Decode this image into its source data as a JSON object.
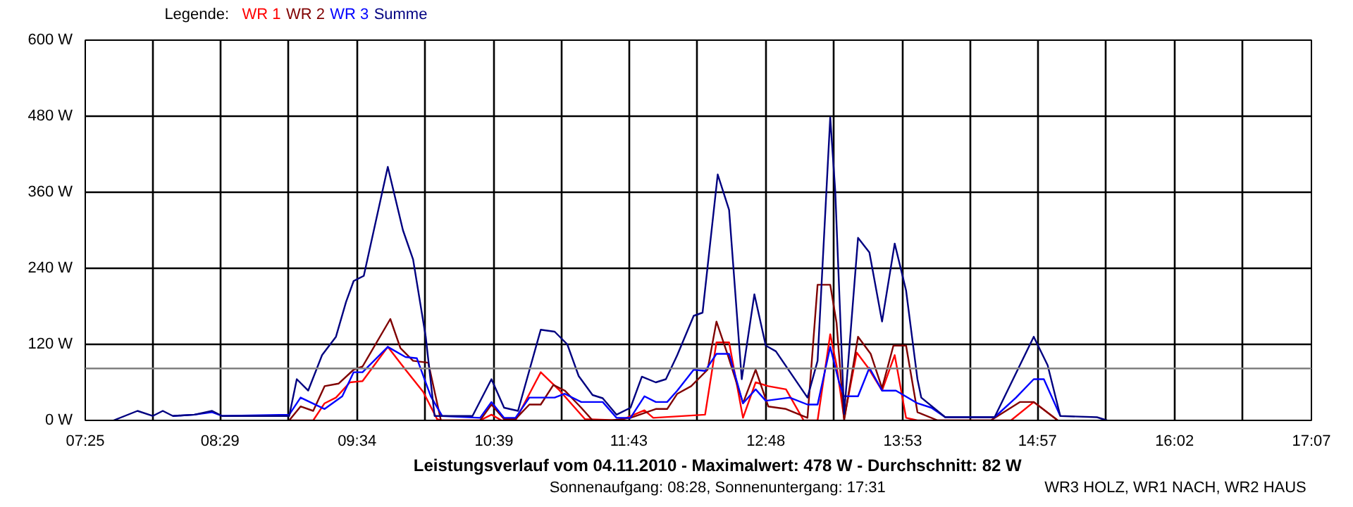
{
  "chart_data": {
    "type": "line",
    "title": "Leistungsverlauf vom 04.11.2010 - Maximalwert: 478 W - Durchschnitt: 82 W",
    "subtitle": "Sonnenaufgang: 08:28, Sonnenuntergang: 17:31",
    "annotations": [
      "WR3 HOLZ, WR1 NACH, WR2 HAUS"
    ],
    "legend_title": "Legende:",
    "legend": "top left",
    "grid": true,
    "xlim": [
      7.4167,
      17.1167
    ],
    "xticks": [
      {
        "value": 7.4167,
        "label": "07:25"
      },
      {
        "value": 7.95,
        "label": null
      },
      {
        "value": 8.4833,
        "label": "08:29"
      },
      {
        "value": 9.025,
        "label": null
      },
      {
        "value": 9.5667,
        "label": "09:34"
      },
      {
        "value": 10.1083,
        "label": null
      },
      {
        "value": 10.65,
        "label": "10:39"
      },
      {
        "value": 11.1833,
        "label": null
      },
      {
        "value": 11.7167,
        "label": "11:43"
      },
      {
        "value": 12.2583,
        "label": null
      },
      {
        "value": 12.8,
        "label": "12:48"
      },
      {
        "value": 13.3417,
        "label": null
      },
      {
        "value": 13.8833,
        "label": "13:53"
      },
      {
        "value": 14.4167,
        "label": null
      },
      {
        "value": 14.95,
        "label": "14:57"
      },
      {
        "value": 15.4917,
        "label": null
      },
      {
        "value": 16.0333,
        "label": "16:02"
      },
      {
        "value": 16.575,
        "label": null
      },
      {
        "value": 17.1167,
        "label": "17:07"
      }
    ],
    "ylim": [
      0,
      600
    ],
    "yticks": [
      {
        "value": 0,
        "label": "0 W"
      },
      {
        "value": 120,
        "label": "120 W"
      },
      {
        "value": 240,
        "label": "240 W"
      },
      {
        "value": 360,
        "label": "360 W"
      },
      {
        "value": 480,
        "label": "480 W"
      },
      {
        "value": 600,
        "label": "600 W"
      }
    ],
    "ref_lines": [
      {
        "axis": "y",
        "value": 82,
        "color": "#808080"
      }
    ],
    "series": [
      {
        "name": "WR 1",
        "color": "#ff0000",
        "x": [
          9.03,
          9.22,
          9.31,
          9.4,
          9.51,
          9.61,
          9.81,
          9.95,
          10.09,
          10.2,
          10.23,
          10.54,
          10.63,
          10.71,
          10.82,
          11.02,
          11.17,
          11.37,
          11.65,
          11.84,
          11.91,
          12.32,
          12.41,
          12.51,
          12.62,
          12.72,
          12.82,
          12.96,
          13.1,
          13.21,
          13.31,
          13.36,
          13.42,
          13.52,
          13.61,
          13.72,
          13.82,
          13.91,
          14.0,
          14.16,
          14.74,
          14.92,
          15.11
        ],
        "values": [
          0,
          0,
          27,
          36,
          60,
          62,
          116,
          80,
          45,
          2,
          0,
          0,
          9,
          0,
          0,
          76,
          47,
          2,
          0,
          16,
          4,
          9,
          123,
          123,
          4,
          60,
          54,
          49,
          0,
          0,
          136,
          87,
          3,
          107,
          83,
          47,
          103,
          4,
          0,
          0,
          0,
          29,
          0
        ]
      },
      {
        "name": "WR 2",
        "color": "#800000",
        "x": [
          9.03,
          9.12,
          9.22,
          9.31,
          9.42,
          9.54,
          9.61,
          9.83,
          9.91,
          10.01,
          10.13,
          10.23,
          10.54,
          10.63,
          10.73,
          10.82,
          10.93,
          11.02,
          11.12,
          11.21,
          11.34,
          11.43,
          11.58,
          11.73,
          11.93,
          12.02,
          12.1,
          12.21,
          12.34,
          12.41,
          12.5,
          12.62,
          12.72,
          12.82,
          12.96,
          13.13,
          13.21,
          13.31,
          13.36,
          13.42,
          13.53,
          13.63,
          13.72,
          13.81,
          13.91,
          14.0,
          14.16,
          14.58,
          14.81,
          14.92,
          15.11
        ],
        "values": [
          0,
          22,
          15,
          54,
          58,
          80,
          85,
          160,
          114,
          94,
          91,
          0,
          0,
          25,
          2,
          2,
          25,
          25,
          56,
          47,
          20,
          0,
          0,
          4,
          18,
          18,
          42,
          54,
          80,
          156,
          103,
          27,
          80,
          22,
          18,
          4,
          214,
          214,
          154,
          0,
          132,
          105,
          51,
          118,
          118,
          13,
          0,
          0,
          29,
          29,
          0
        ]
      },
      {
        "name": "WR 3",
        "color": "#0000ff",
        "x": [
          8.11,
          8.28,
          8.42,
          8.5,
          9.03,
          9.12,
          9.31,
          9.45,
          9.54,
          9.61,
          9.81,
          9.95,
          10.04,
          10.15,
          10.24,
          10.54,
          10.63,
          10.73,
          10.82,
          10.93,
          11.13,
          11.21,
          11.34,
          11.51,
          11.62,
          11.73,
          11.84,
          11.93,
          12.02,
          12.1,
          12.23,
          12.32,
          12.41,
          12.51,
          12.62,
          12.72,
          12.8,
          12.99,
          13.13,
          13.21,
          13.31,
          13.38,
          13.42,
          13.53,
          13.62,
          13.72,
          13.83,
          14.0,
          14.11,
          14.22,
          14.61,
          14.78,
          14.92,
          15.0,
          15.13
        ],
        "values": [
          7,
          9,
          13,
          7,
          9,
          36,
          18,
          38,
          76,
          76,
          116,
          100,
          98,
          38,
          7,
          4,
          29,
          4,
          4,
          36,
          36,
          42,
          29,
          29,
          4,
          4,
          38,
          29,
          29,
          47,
          80,
          78,
          105,
          105,
          27,
          49,
          31,
          36,
          25,
          25,
          116,
          60,
          38,
          38,
          83,
          47,
          47,
          27,
          20,
          5,
          5,
          36,
          65,
          65,
          7
        ]
      },
      {
        "name": "Summe",
        "color": "#000080",
        "x": [
          7.64,
          7.83,
          7.95,
          8.03,
          8.11,
          8.28,
          8.42,
          8.5,
          9.03,
          9.09,
          9.18,
          9.29,
          9.4,
          9.48,
          9.54,
          9.62,
          9.81,
          9.93,
          10.01,
          10.11,
          10.18,
          10.48,
          10.63,
          10.73,
          10.84,
          11.02,
          11.13,
          11.23,
          11.32,
          11.43,
          11.51,
          11.62,
          11.73,
          11.82,
          11.93,
          12.01,
          12.1,
          12.23,
          12.3,
          12.42,
          12.51,
          12.61,
          12.71,
          12.8,
          12.88,
          13.13,
          13.21,
          13.31,
          13.35,
          13.36,
          13.42,
          13.53,
          13.62,
          13.72,
          13.82,
          13.91,
          14.0,
          14.03,
          14.22,
          14.61,
          14.92,
          15.03,
          15.13,
          15.42,
          15.5
        ],
        "values": [
          0,
          15,
          7,
          15,
          7,
          9,
          15,
          7,
          7,
          65,
          47,
          103,
          132,
          187,
          220,
          228,
          400,
          300,
          254,
          132,
          7,
          7,
          65,
          20,
          15,
          143,
          140,
          120,
          70,
          40,
          35,
          9,
          20,
          69,
          60,
          65,
          103,
          165,
          170,
          388,
          332,
          65,
          199,
          118,
          109,
          36,
          94,
          478,
          361,
          310,
          10,
          288,
          265,
          156,
          279,
          205,
          65,
          36,
          5,
          5,
          132,
          87,
          7,
          5,
          0
        ]
      }
    ]
  }
}
